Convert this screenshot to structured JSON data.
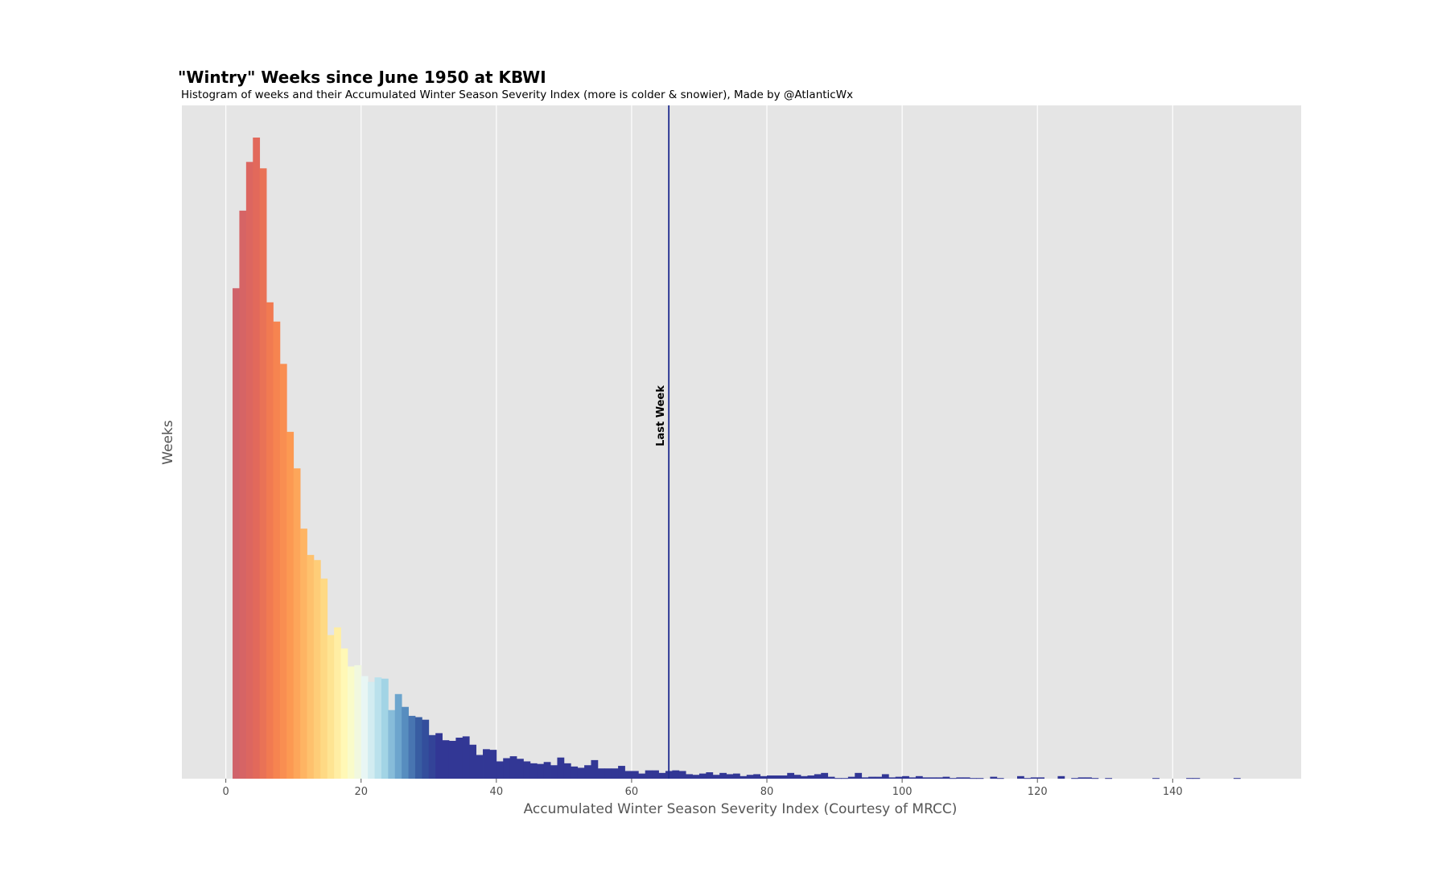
{
  "chart_data": {
    "type": "bar",
    "title": "\"Wintry\" Weeks since June 1950 at KBWI",
    "subtitle": "Histogram of weeks and their Accumulated Winter Season Severity Index (more is colder & snowier), Made by @AtlanticWx",
    "xlabel": "Accumulated Winter Season Severity Index (Courtesy of MRCC)",
    "ylabel": "Weeks",
    "xlim": [
      -6.5,
      159
    ],
    "ylim": [
      0,
      100
    ],
    "xticks": [
      0,
      20,
      40,
      60,
      80,
      100,
      120,
      140
    ],
    "yticks_shown": false,
    "grid": true,
    "bin_start": 1,
    "bin_width": 1,
    "values": [
      76.5,
      88.6,
      96.2,
      100,
      95.2,
      74.3,
      71.3,
      64.7,
      54.1,
      48.4,
      39.0,
      34.9,
      34.1,
      31.2,
      22.4,
      23.6,
      20.3,
      17.5,
      17.7,
      16.0,
      15.1,
      15.8,
      15.6,
      10.7,
      13.2,
      11.2,
      9.8,
      9.6,
      9.2,
      6.8,
      7.1,
      6.0,
      5.9,
      6.4,
      6.6,
      5.3,
      3.7,
      4.6,
      4.5,
      2.7,
      3.2,
      3.5,
      3.1,
      2.7,
      2.4,
      2.3,
      2.6,
      2.1,
      3.3,
      2.4,
      1.9,
      1.7,
      2.1,
      2.9,
      1.6,
      1.6,
      1.6,
      2.0,
      1.2,
      1.2,
      0.8,
      1.3,
      1.3,
      0.9,
      1.2,
      1.3,
      1.2,
      0.7,
      0.6,
      0.8,
      1.0,
      0.6,
      0.9,
      0.7,
      0.8,
      0.4,
      0.6,
      0.7,
      0.4,
      0.5,
      0.5,
      0.5,
      0.9,
      0.6,
      0.4,
      0.5,
      0.7,
      0.9,
      0.3,
      0.1,
      0.1,
      0.3,
      0.9,
      0.2,
      0.3,
      0.3,
      0.7,
      0.2,
      0.3,
      0.4,
      0.2,
      0.4,
      0.2,
      0.2,
      0.2,
      0.3,
      0.1,
      0.2,
      0.2,
      0.1,
      0.1,
      0,
      0.3,
      0.1,
      0,
      0,
      0.4,
      0.1,
      0.2,
      0.2,
      0,
      0,
      0.4,
      0,
      0.1,
      0.2,
      0.2,
      0.1,
      0,
      0.1,
      0,
      0,
      0,
      0,
      0,
      0,
      0.1,
      0,
      0,
      0,
      0,
      0.1,
      0.1,
      0,
      0,
      0,
      0,
      0,
      0.1
    ],
    "annotations": [
      {
        "type": "vline",
        "x": 65.5,
        "label": "Last Week",
        "color": "#1f2c8f"
      }
    ],
    "colormap": [
      "#d0626a",
      "#e0675c",
      "#f47e4f",
      "#fd9b52",
      "#fec06c",
      "#fee08b",
      "#fffcbd",
      "#e7f6f6",
      "#a7d8e7",
      "#5e98c6",
      "#34579e",
      "#323795"
    ]
  }
}
